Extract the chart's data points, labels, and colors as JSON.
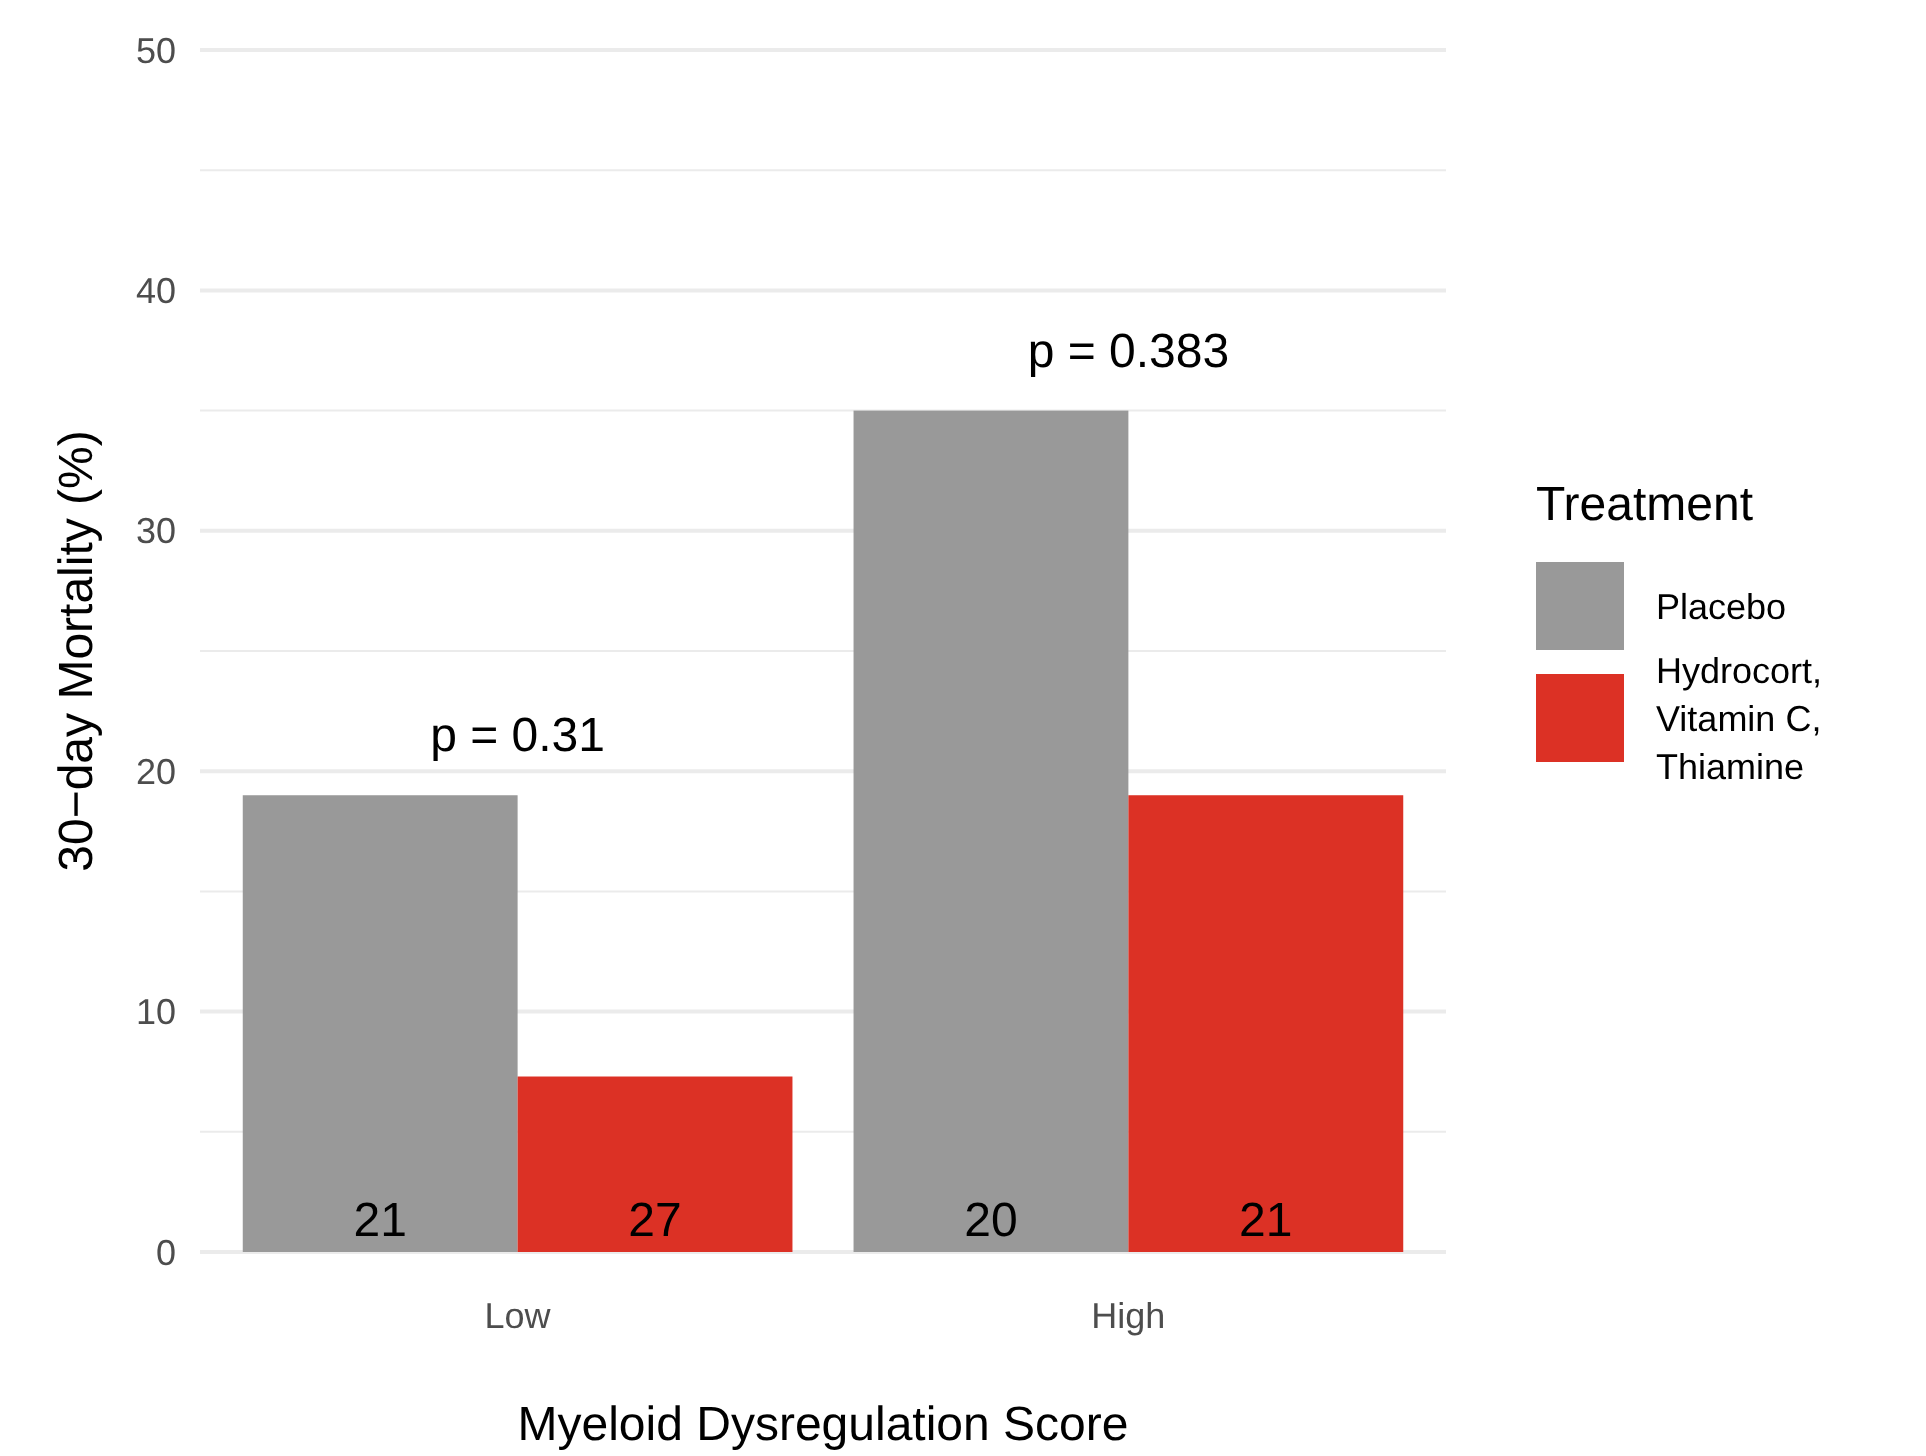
{
  "chart_data": {
    "type": "bar",
    "xlabel": "Myeloid Dysregulation Score",
    "ylabel": "30−day Mortality (%)",
    "legend_title": "Treatment",
    "categories": [
      "Low",
      "High"
    ],
    "series": [
      {
        "name": "Placebo",
        "color": "#999999",
        "values": [
          19,
          35
        ]
      },
      {
        "name": "Hydrocort,\nVitamin C,\nThiamine",
        "color": "#dc3125",
        "values": [
          7.3,
          19
        ]
      }
    ],
    "ylim": [
      0,
      50
    ],
    "yticks": [
      0,
      {
        "value": 5,
        "label": null
      },
      10,
      {
        "value": 15,
        "label": null
      },
      20,
      {
        "value": 25,
        "label": null
      },
      30,
      {
        "value": 35,
        "label": null
      },
      40,
      {
        "value": 45,
        "label": null
      },
      50
    ],
    "grid": "y",
    "legend": "right",
    "annotations": [
      {
        "text": "p = 0.31",
        "x": "Low",
        "y": 19
      },
      {
        "text": "p = 0.383",
        "x": "High",
        "y": 35
      },
      {
        "text": "21",
        "x": "Low",
        "y": 0
      },
      {
        "text": "27",
        "x": "Low",
        "y": 0
      },
      {
        "text": "20",
        "x": "High",
        "y": 0
      },
      {
        "text": "21",
        "x": "High",
        "y": 0
      }
    ]
  }
}
